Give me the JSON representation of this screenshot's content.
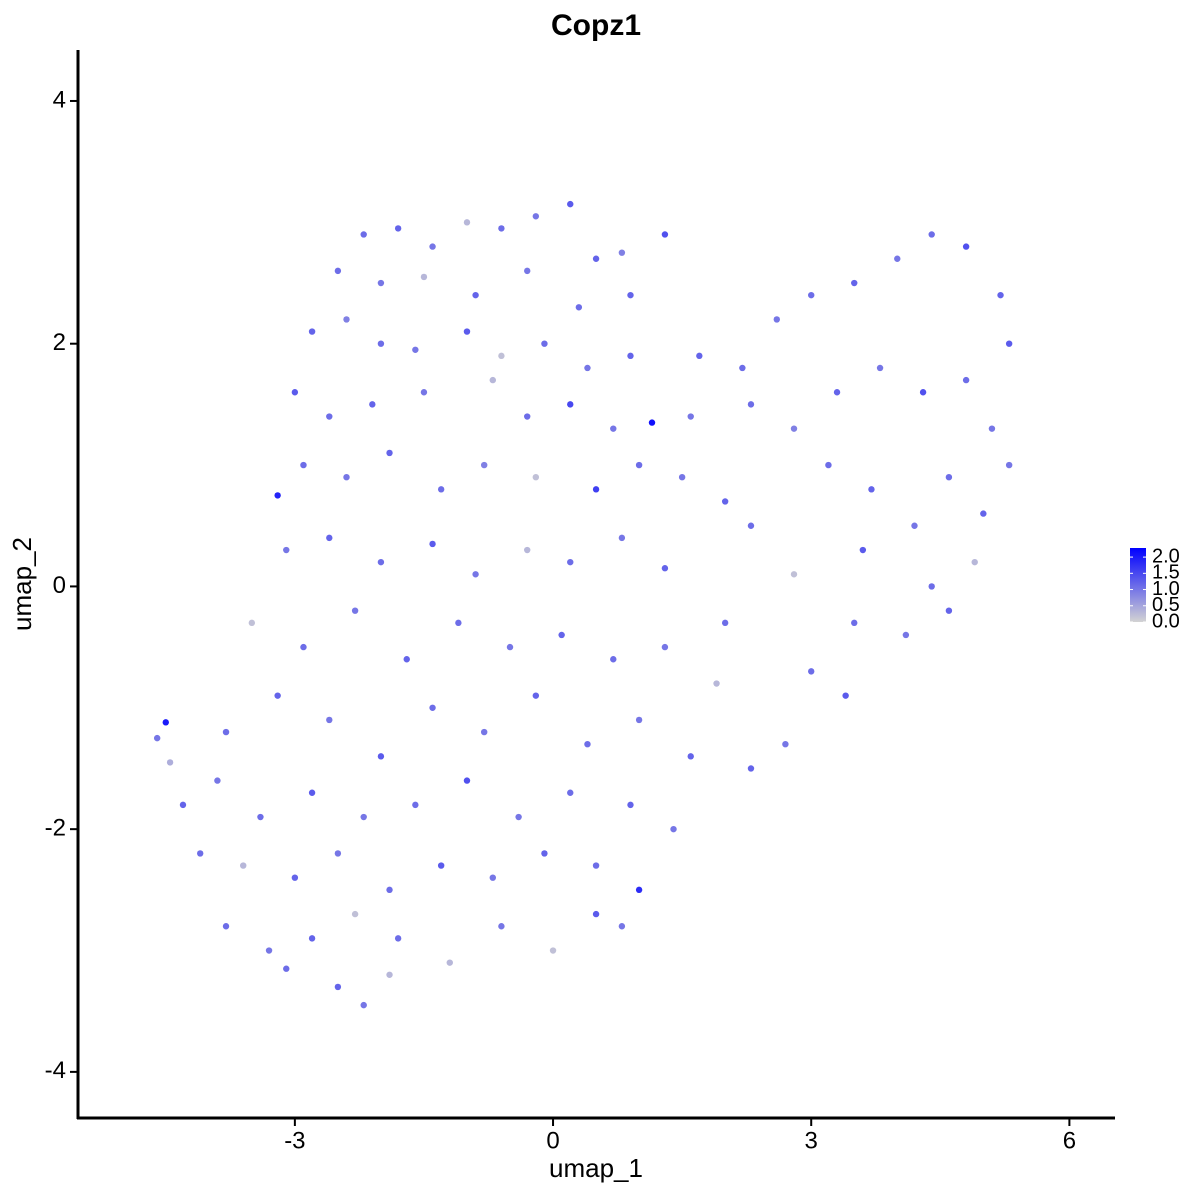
{
  "chart_data": {
    "type": "scatter",
    "title": "Copz1",
    "xlabel": "umap_1",
    "ylabel": "umap_2",
    "xlim": [
      -5.52,
      6.53
    ],
    "ylim": [
      -4.38,
      4.42
    ],
    "xticks": [
      -3,
      0,
      3,
      6
    ],
    "yticks": [
      -4,
      -2,
      0,
      2,
      4
    ],
    "color_low": "#d3d3d3",
    "color_high": "#0000ff",
    "clim": [
      0,
      2.28
    ],
    "cticks": [
      {
        "value": 0,
        "label": "0.0"
      },
      0.5,
      {
        "value": 1,
        "label": "1.0"
      },
      1.5,
      {
        "value": 2,
        "label": "2.0"
      }
    ],
    "x": [
      -2.2,
      -1.8,
      -1.4,
      -1.0,
      -0.6,
      -0.2,
      0.2,
      0.5,
      0.8,
      1.3,
      -2.5,
      -2.0,
      -1.5,
      -0.9,
      -0.3,
      0.3,
      0.9,
      -2.8,
      -2.4,
      -2.0,
      -1.6,
      -1.0,
      -0.6,
      -0.1,
      0.4,
      0.9,
      -3.0,
      -2.6,
      -2.1,
      -1.5,
      -0.7,
      -0.3,
      0.2,
      0.7,
      1.15,
      -3.2,
      -2.9,
      -2.4,
      -1.9,
      -1.3,
      -0.8,
      -0.2,
      0.5,
      1.0,
      1.5,
      2.0,
      -3.1,
      -2.6,
      -2.0,
      -1.4,
      -0.9,
      -0.3,
      0.2,
      0.8,
      1.3,
      2.3,
      2.8,
      1.7,
      2.2,
      2.6,
      3.0,
      3.5,
      4.0,
      4.4,
      4.8,
      5.2,
      5.3,
      1.6,
      2.3,
      2.8,
      3.3,
      3.8,
      4.3,
      4.8,
      5.1,
      3.2,
      3.7,
      4.2,
      4.6,
      5.0,
      5.3,
      4.9,
      4.4,
      3.6,
      3.5,
      4.1,
      4.6,
      3.0,
      3.4,
      2.7,
      2.3,
      -3.5,
      -2.9,
      -2.3,
      -1.7,
      -1.1,
      -0.5,
      0.1,
      0.7,
      1.3,
      1.9,
      2.0,
      -3.8,
      -3.2,
      -2.6,
      -2.0,
      -1.4,
      -0.8,
      -0.2,
      0.4,
      1.0,
      1.6,
      -4.6,
      -4.5,
      -4.45,
      -4.3,
      -3.9,
      -3.4,
      -2.8,
      -2.2,
      -1.6,
      -1.0,
      -0.4,
      0.2,
      0.9,
      1.4,
      -4.1,
      -3.6,
      -3.0,
      -2.5,
      -1.9,
      -1.3,
      -0.7,
      -0.1,
      0.5,
      1.0,
      -3.8,
      -3.3,
      -2.8,
      -2.3,
      -1.8,
      -1.2,
      -0.6,
      0.0,
      0.5,
      0.8,
      -2.5,
      -2.2,
      -1.9,
      -3.1
    ],
    "y": [
      2.9,
      2.95,
      2.8,
      3.0,
      2.95,
      3.05,
      3.15,
      2.7,
      2.75,
      2.9,
      2.6,
      2.5,
      2.55,
      2.4,
      2.6,
      2.3,
      2.4,
      2.1,
      2.2,
      2.0,
      1.95,
      2.1,
      1.9,
      2.0,
      1.8,
      1.9,
      1.6,
      1.4,
      1.5,
      1.6,
      1.7,
      1.4,
      1.5,
      1.3,
      1.35,
      0.75,
      1.0,
      0.9,
      1.1,
      0.8,
      1.0,
      0.9,
      0.8,
      1.0,
      0.9,
      0.7,
      0.3,
      0.4,
      0.2,
      0.35,
      0.1,
      0.3,
      0.2,
      0.4,
      0.15,
      0.5,
      0.1,
      1.9,
      1.8,
      2.2,
      2.4,
      2.5,
      2.7,
      2.9,
      2.8,
      2.4,
      2.0,
      1.4,
      1.5,
      1.3,
      1.6,
      1.8,
      1.6,
      1.7,
      1.3,
      1.0,
      0.8,
      0.5,
      0.9,
      0.6,
      1.0,
      0.2,
      0.0,
      0.3,
      -0.3,
      -0.4,
      -0.2,
      -0.7,
      -0.9,
      -1.3,
      -1.5,
      -0.3,
      -0.5,
      -0.2,
      -0.6,
      -0.3,
      -0.5,
      -0.4,
      -0.6,
      -0.5,
      -0.8,
      -0.3,
      -1.2,
      -0.9,
      -1.1,
      -1.4,
      -1.0,
      -1.2,
      -0.9,
      -1.3,
      -1.1,
      -1.4,
      -1.25,
      -1.12,
      -1.45,
      -1.8,
      -1.6,
      -1.9,
      -1.7,
      -1.9,
      -1.8,
      -1.6,
      -1.9,
      -1.7,
      -1.8,
      -2.0,
      -2.2,
      -2.3,
      -2.4,
      -2.2,
      -2.5,
      -2.3,
      -2.4,
      -2.2,
      -2.3,
      -2.5,
      -2.8,
      -3.0,
      -2.9,
      -2.7,
      -2.9,
      -3.1,
      -2.8,
      -3.0,
      -2.7,
      -2.8,
      -3.3,
      -3.45,
      -3.2,
      -3.15
    ],
    "values": [
      1.1,
      1.2,
      1.0,
      0.3,
      1.1,
      1.0,
      1.3,
      1.2,
      0.9,
      1.4,
      1.1,
      1.0,
      0.3,
      1.2,
      1.0,
      1.1,
      1.2,
      1.2,
      0.9,
      1.1,
      1.0,
      1.3,
      0.2,
      1.1,
      1.0,
      1.2,
      1.3,
      1.1,
      1.2,
      1.0,
      0.3,
      1.1,
      1.5,
      1.0,
      2.1,
      1.9,
      1.1,
      1.0,
      1.2,
      1.1,
      0.9,
      0.2,
      1.6,
      1.1,
      1.0,
      1.2,
      1.0,
      1.2,
      1.1,
      1.3,
      1.0,
      0.3,
      1.1,
      1.0,
      1.2,
      1.1,
      0.2,
      1.2,
      1.1,
      1.0,
      1.1,
      1.2,
      1.0,
      1.1,
      1.4,
      1.2,
      1.3,
      1.0,
      1.1,
      0.9,
      1.2,
      1.0,
      1.4,
      1.1,
      1.0,
      1.1,
      1.2,
      1.0,
      1.1,
      1.2,
      1.0,
      0.3,
      1.1,
      1.3,
      1.1,
      1.0,
      1.2,
      1.1,
      1.3,
      1.0,
      1.2,
      0.2,
      1.1,
      1.0,
      1.2,
      1.1,
      1.0,
      1.2,
      1.1,
      1.0,
      0.3,
      1.1,
      1.1,
      1.2,
      1.0,
      1.3,
      1.1,
      1.0,
      1.2,
      1.1,
      1.0,
      1.2,
      1.0,
      2.0,
      0.4,
      1.2,
      1.0,
      1.1,
      1.3,
      1.0,
      1.1,
      1.4,
      1.0,
      1.1,
      1.2,
      1.0,
      1.1,
      0.3,
      1.2,
      1.0,
      1.1,
      1.3,
      1.0,
      1.2,
      1.1,
      1.8,
      1.1,
      1.0,
      1.2,
      0.2,
      1.1,
      0.3,
      1.0,
      0.2,
      1.3,
      1.0,
      1.2,
      1.0,
      0.3,
      1.1
    ]
  }
}
